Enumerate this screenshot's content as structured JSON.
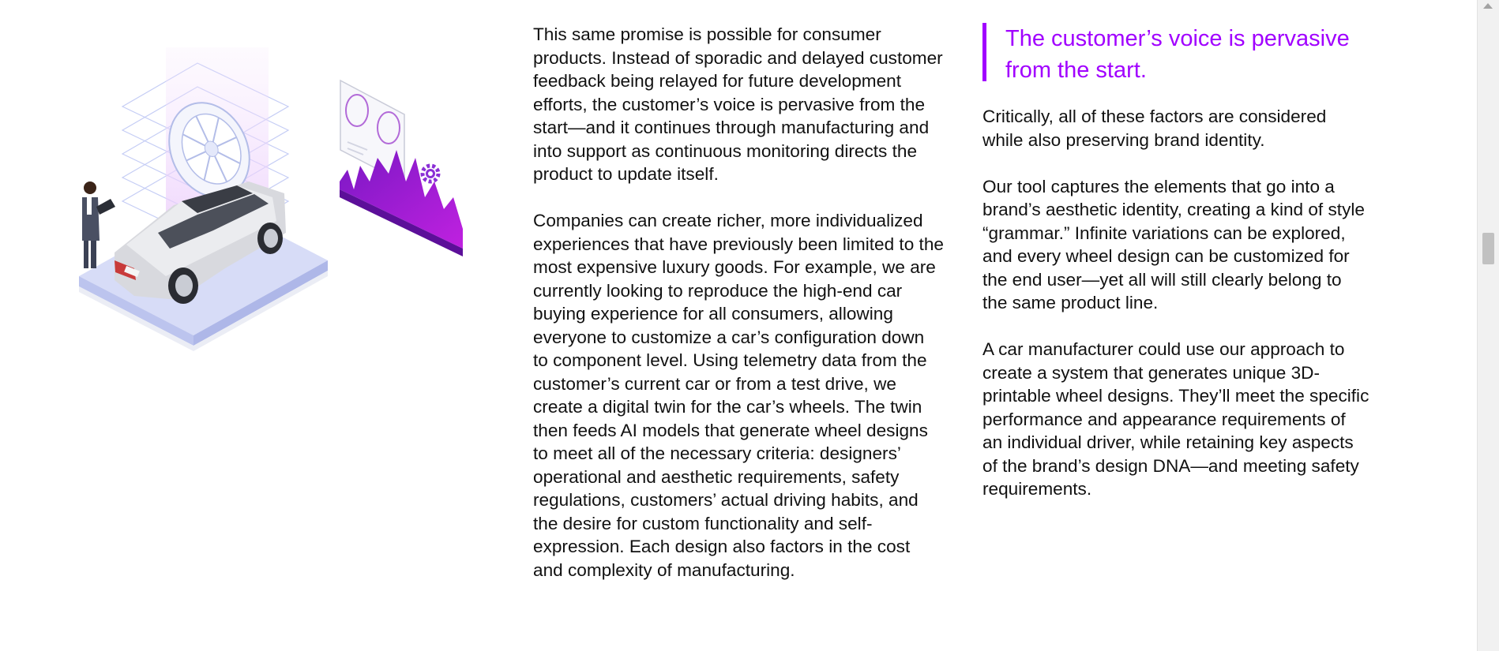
{
  "article": {
    "middle_paragraphs": [
      "This same promise is possible for consumer products. Instead of sporadic and delayed customer feedback being relayed for future development efforts, the customer’s voice is pervasive from the start—and it continues through manufacturing and into support as continuous monitoring directs the product to update itself.",
      "Companies can create richer, more individualized experiences that have previously been limited to the most expensive luxury goods. For example, we are currently looking to reproduce the high-end car buying experience for all consumers, allowing everyone to customize a car’s configuration down to component level. Using telemetry data from the customer’s current car or from a test drive, we create a digital twin for the car’s wheels. The twin then feeds AI models that generate wheel designs to meet all of the necessary criteria: designers’ operational and aesthetic requirements, safety regulations, customers’ actual driving habits, and the desire for custom functionality and self-expression. Each design also factors in the cost and complexity of manufacturing."
    ],
    "pull_quote": "The customer’s voice is pervasive from the start.",
    "right_paragraphs": [
      "Critically, all of these factors are considered while also preserving brand identity.",
      "Our tool captures the elements that go into a brand’s aesthetic identity, creating a kind of style “grammar.” Infinite variations can be explored, and every wheel design can be customized for the end user—yet all will still clearly belong to the same product line.",
      "A car manufacturer could use our approach to create a system that generates unique 3D-printable wheel designs. They’ll meet the specific performance and appearance requirements of an individual driver, while retaining key aspects of the brand’s design DNA—and meeting safety requirements."
    ]
  },
  "illustration": {
    "icons": [
      "car-icon",
      "wheel-icon",
      "person-icon",
      "gear-icon",
      "wave-chart-icon",
      "design-panel-icon"
    ],
    "colors": {
      "accent_purple": "#a100ff",
      "wave_purple": "#9b1fd0",
      "platform_blue": "#d7dcf7",
      "wireframe_blue": "#b9c2f2",
      "glow_pink": "#f0d4fb"
    }
  },
  "colors": {
    "text": "#111111",
    "accent": "#a100ff",
    "background": "#ffffff"
  }
}
